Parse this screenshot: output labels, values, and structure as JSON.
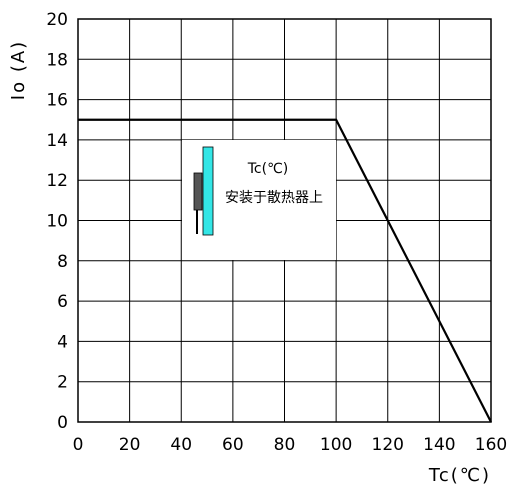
{
  "chart_data": {
    "type": "line",
    "xlabel": "Tc(℃)",
    "ylabel": "Io (A)",
    "xlim": [
      0,
      160
    ],
    "ylim": [
      0,
      20
    ],
    "x_ticks": [
      "0",
      "20",
      "40",
      "60",
      "80",
      "100",
      "120",
      "140",
      "160"
    ],
    "y_ticks": [
      "0",
      "2",
      "4",
      "6",
      "8",
      "10",
      "12",
      "14",
      "16",
      "18",
      "20"
    ],
    "grid": true,
    "series": [
      {
        "x": [
          0,
          100,
          160
        ],
        "y": [
          15,
          15,
          0
        ],
        "color": "#000000"
      }
    ],
    "inset": {
      "label_line1": "Tc(℃)",
      "label_line2": "安装于散热器上",
      "heatsink_color": "#33e6e6",
      "device_color": "#555555"
    }
  }
}
